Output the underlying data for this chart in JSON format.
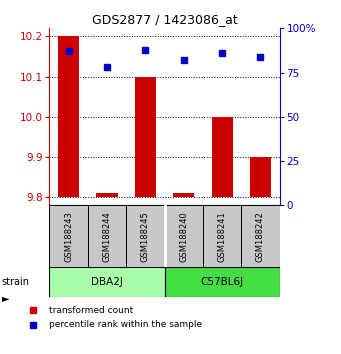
{
  "title": "GDS2877 / 1423086_at",
  "samples": [
    "GSM188243",
    "GSM188244",
    "GSM188245",
    "GSM188240",
    "GSM188241",
    "GSM188242"
  ],
  "red_values": [
    10.2,
    9.81,
    10.1,
    9.81,
    10.0,
    9.9
  ],
  "blue_values": [
    87,
    78,
    88,
    82,
    86,
    84
  ],
  "ylim_left": [
    9.78,
    10.22
  ],
  "ylim_right": [
    0,
    100
  ],
  "yticks_left": [
    9.8,
    9.9,
    10.0,
    10.1,
    10.2
  ],
  "yticks_right": [
    0,
    25,
    50,
    75,
    100
  ],
  "red_base": 9.8,
  "strains": [
    {
      "label": "DBA2J",
      "samples": [
        0,
        1,
        2
      ],
      "color": "#AAFFAA"
    },
    {
      "label": "C57BL6J",
      "samples": [
        3,
        4,
        5
      ],
      "color": "#44DD44"
    }
  ],
  "red_color": "#CC0000",
  "blue_color": "#0000CC",
  "bar_width": 0.55,
  "sample_box_color": "#C8C8C8",
  "legend_red_label": "transformed count",
  "legend_blue_label": "percentile rank within the sample"
}
